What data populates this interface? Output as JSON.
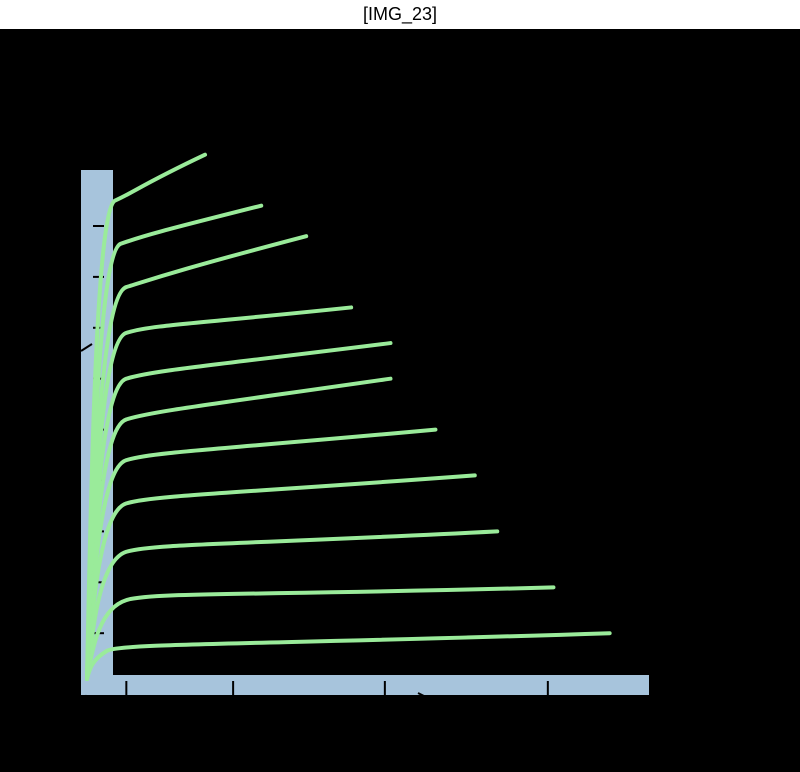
{
  "header": {
    "title": "[IMG_23]"
  },
  "colors": {
    "background": "#000000",
    "axis_band": "#a7c4dc",
    "curve": "#9aeb9a",
    "tick": "#000000",
    "title_bar": "#ffffff"
  },
  "chart_data": {
    "type": "line",
    "title": "",
    "xlabel": "",
    "ylabel": "",
    "tick_labels_visible": false,
    "grid": false,
    "legend": "none",
    "xlim": [
      0,
      10
    ],
    "ylim": [
      0,
      10
    ],
    "x_ticks": [
      0.7,
      2.6,
      5.3,
      8.2
    ],
    "y_ticks": [
      0.9,
      1.9,
      2.9,
      3.9,
      4.9,
      5.9,
      6.9,
      7.9,
      8.9
    ],
    "series": [
      {
        "knee": [
          0.35,
          0.55
        ],
        "end": [
          9.3,
          0.9
        ]
      },
      {
        "knee": [
          0.7,
          1.55
        ],
        "end": [
          8.3,
          1.8
        ]
      },
      {
        "knee": [
          0.7,
          2.5
        ],
        "end": [
          7.3,
          2.9
        ]
      },
      {
        "knee": [
          0.7,
          3.45
        ],
        "end": [
          6.9,
          4.0
        ]
      },
      {
        "knee": [
          0.7,
          4.3
        ],
        "end": [
          6.2,
          4.9
        ]
      },
      {
        "knee": [
          0.7,
          5.1
        ],
        "end": [
          5.4,
          5.9
        ]
      },
      {
        "knee": [
          0.7,
          5.9
        ],
        "end": [
          5.4,
          6.6
        ]
      },
      {
        "knee": [
          0.7,
          6.8
        ],
        "end": [
          4.7,
          7.3
        ]
      },
      {
        "knee": [
          0.7,
          7.7
        ],
        "end": [
          3.9,
          8.7
        ]
      },
      {
        "knee": [
          0.6,
          8.55
        ],
        "end": [
          3.1,
          9.3
        ]
      },
      {
        "knee": [
          0.5,
          9.4
        ],
        "end": [
          2.1,
          10.3
        ]
      }
    ]
  }
}
